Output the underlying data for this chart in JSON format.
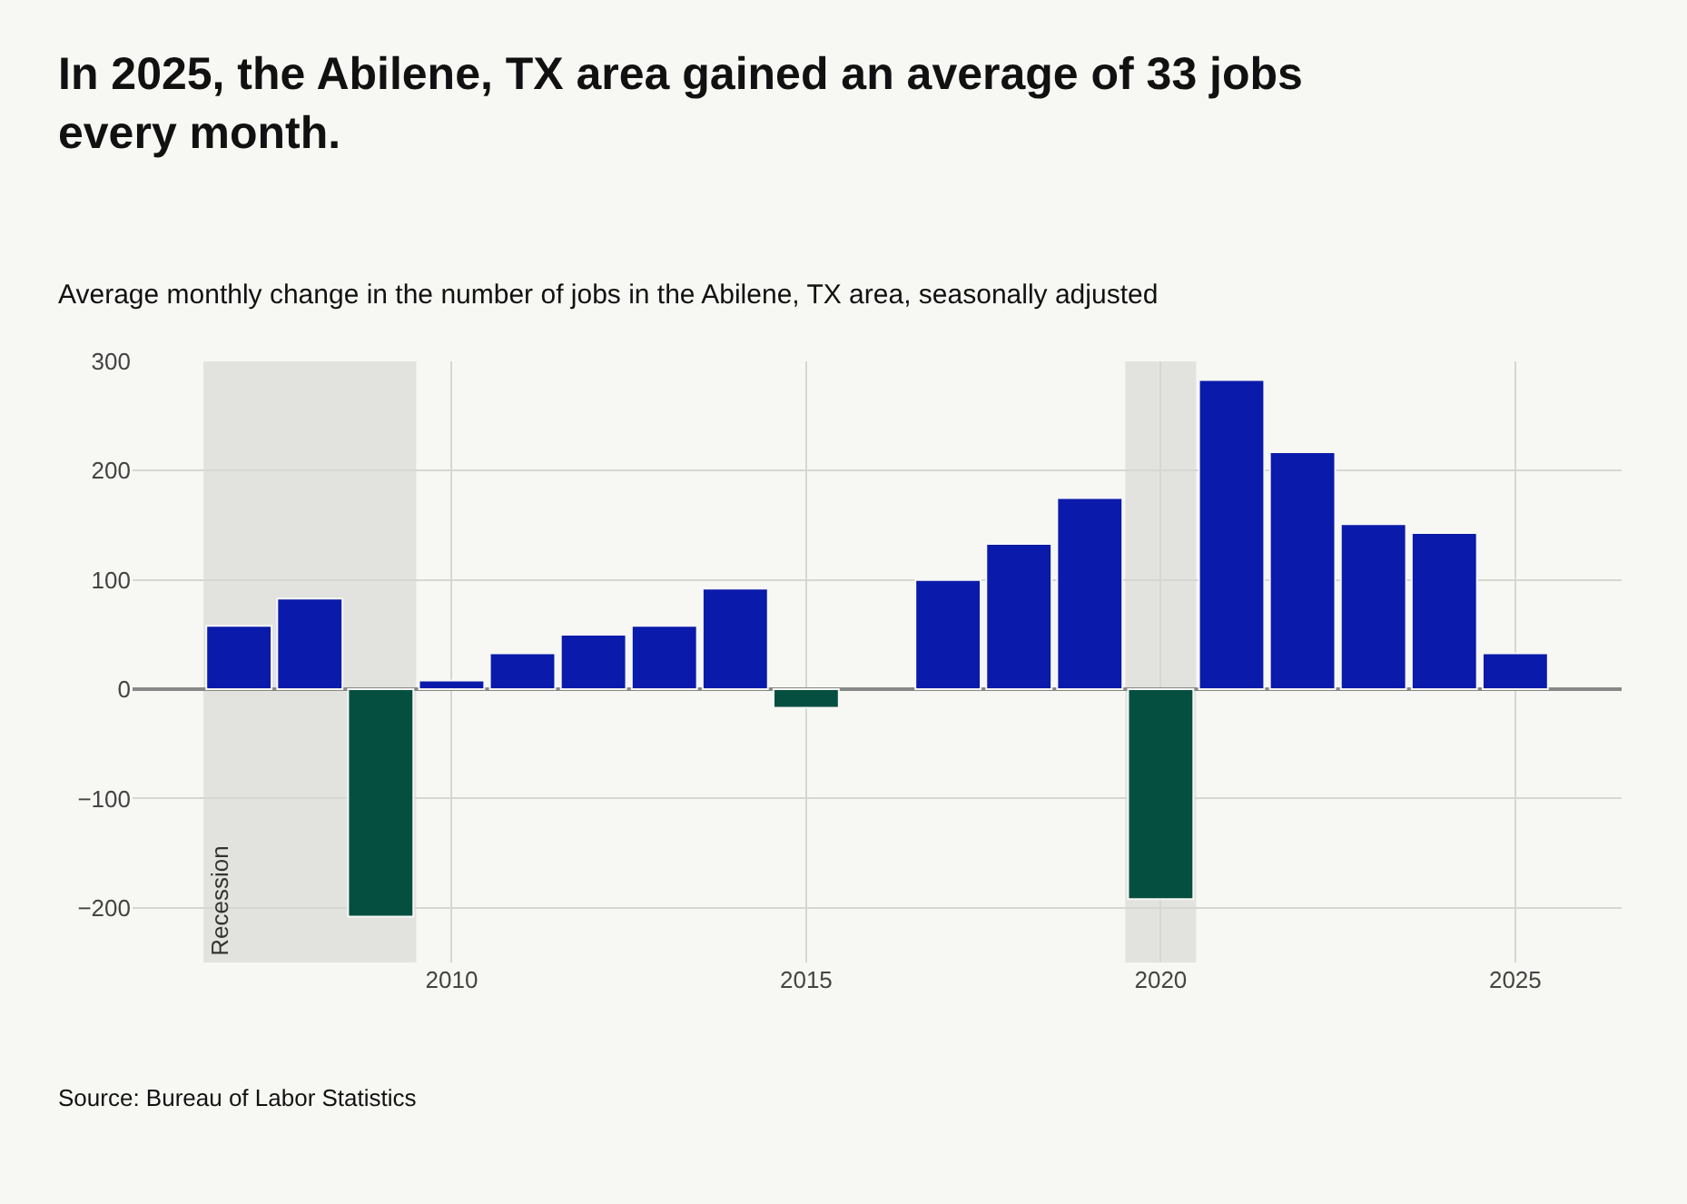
{
  "chart_data": {
    "type": "bar",
    "title": "In 2025, the Abilene, TX area gained an average of 33 jobs every month.",
    "subtitle": "Average monthly change in the number of jobs in the Abilene, TX area, seasonally adjusted",
    "x": [
      2007,
      2008,
      2009,
      2010,
      2011,
      2012,
      2013,
      2014,
      2015,
      2016,
      2017,
      2018,
      2019,
      2020,
      2021,
      2022,
      2023,
      2024,
      2025
    ],
    "values": [
      58,
      83,
      -208,
      8,
      33,
      50,
      58,
      92,
      -17,
      null,
      100,
      133,
      175,
      -192,
      283,
      217,
      151,
      143,
      33
    ],
    "colors": [
      "#0a1aaa",
      "#0a1aaa",
      "#054f40",
      "#0a1aaa",
      "#0a1aaa",
      "#0a1aaa",
      "#0a1aaa",
      "#0a1aaa",
      "#054f40",
      "#0a1aaa",
      "#0a1aaa",
      "#0a1aaa",
      "#0a1aaa",
      "#054f40",
      "#0a1aaa",
      "#0a1aaa",
      "#0a1aaa",
      "#0a1aaa",
      "#0a1aaa"
    ],
    "xlim": [
      2005.5,
      2026.5
    ],
    "xticks": [
      2010,
      2015,
      2020,
      2025
    ],
    "ylim": [
      -250,
      300
    ],
    "yticks": [
      -200,
      -100,
      0,
      100,
      200,
      300
    ],
    "bands": [
      {
        "axis": "x",
        "from": 2006.5,
        "to": 2009.5,
        "label": "Recession",
        "color": "#e2e2de"
      },
      {
        "axis": "x",
        "from": 2019.5,
        "to": 2020.5,
        "color": "#e2e2de"
      }
    ],
    "grid": true,
    "annotations": [
      "Source: Bureau of Labor Statistics"
    ]
  }
}
